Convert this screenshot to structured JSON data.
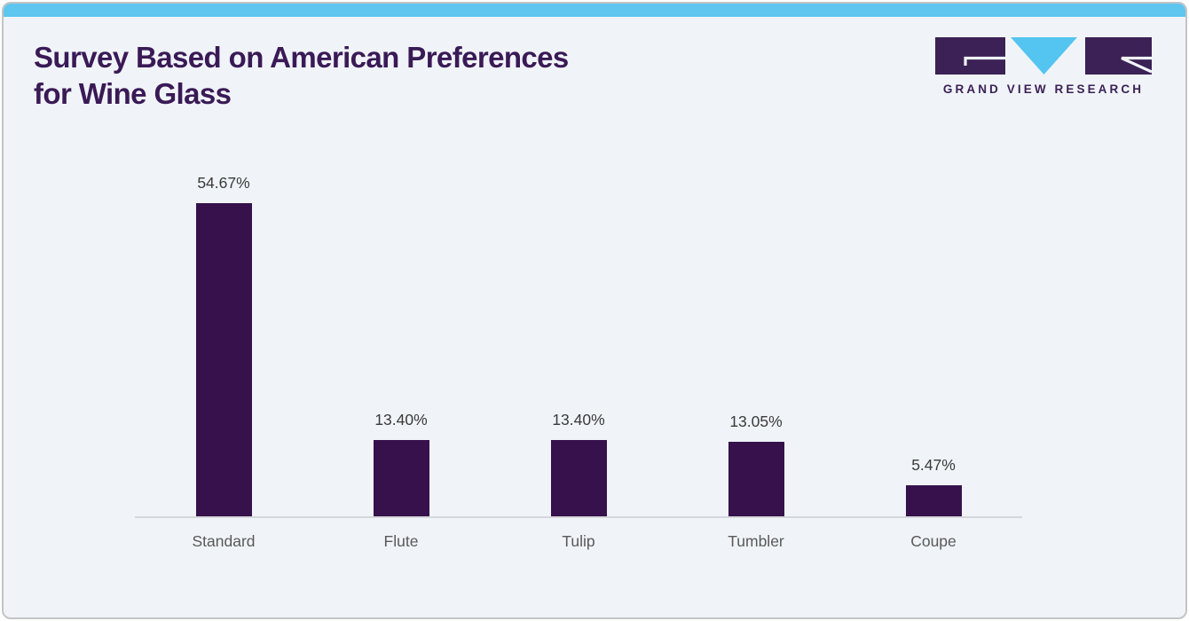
{
  "header": {
    "title_line1": "Survey Based on American Preferences",
    "title_line2": "for Wine Glass",
    "logo_text": "GRAND VIEW RESEARCH"
  },
  "colors": {
    "accent_bar": "#5ec6ef",
    "bar_fill": "#36114b",
    "title_text": "#3a1a56",
    "logo_purple": "#3b2156",
    "logo_blue": "#54c4f0",
    "card_background": "#f0f4f8",
    "axis_line": "#d5d8db"
  },
  "chart_data": {
    "type": "bar",
    "title": "Survey Based on American Preferences for Wine Glass",
    "categories": [
      "Standard",
      "Flute",
      "Tulip",
      "Tumbler",
      "Coupe"
    ],
    "values": [
      54.67,
      13.4,
      13.4,
      13.05,
      5.47
    ],
    "labels": [
      "54.67%",
      "13.40%",
      "13.40%",
      "13.05%",
      "5.47%"
    ],
    "xlabel": "",
    "ylabel": "",
    "ylim": [
      0,
      60
    ],
    "grid": false,
    "legend_position": "none",
    "bar_color": "#36114b"
  }
}
